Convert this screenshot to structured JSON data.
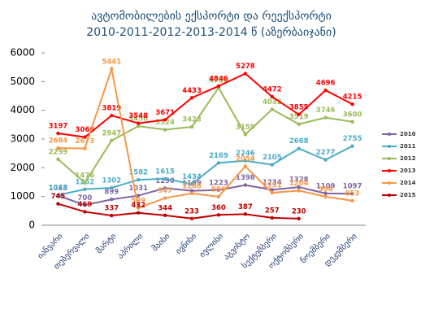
{
  "chart_data": {
    "type": "line",
    "title": "ავტომობილების  ექსპორტი და რეექსპორტი",
    "subtitle": "2010-2011-2012-2013-2014  წ (აზერბაიჯანი)",
    "categories": [
      "იანვარი",
      "თებერვალი",
      "მარტი",
      "აპრილი",
      "მაისი",
      "ივნისი",
      "ივლისი",
      "აგვისტო",
      "სექტემბერი",
      "ოქტომბერი",
      "ნოემბერი",
      "დეკემბერი"
    ],
    "series": [
      {
        "name": "2010",
        "color": "#8064a2",
        "values": [
          1033,
          700,
          899,
          1031,
          1290,
          1199,
          1223,
          1398,
          1234,
          1328,
          1109,
          1097
        ]
      },
      {
        "name": "2011",
        "color": "#4bacc6",
        "values": [
          1048,
          1252,
          1302,
          1582,
          1615,
          1434,
          2169,
          2246,
          2105,
          2668,
          2277,
          2755
        ]
      },
      {
        "name": "2012",
        "color": "#9bbb59",
        "values": [
          2299,
          1476,
          2947,
          3450,
          3324,
          3423,
          4786,
          3159,
          4032,
          3519,
          3746,
          3600
        ]
      },
      {
        "name": "2013",
        "color": "#ff0000",
        "values": [
          3197,
          3066,
          3819,
          3548,
          3671,
          4433,
          4846,
          5278,
          4472,
          3855,
          4696,
          4215
        ]
      },
      {
        "name": "2014",
        "color": "#f79646",
        "values": [
          2684,
          2673,
          5441,
          599,
          947,
          1108,
          996,
          2054,
          1131,
          1204,
          994,
          853
        ]
      },
      {
        "name": "2015",
        "color": "#c00000",
        "values": [
          745,
          469,
          337,
          432,
          344,
          233,
          360,
          387,
          257,
          230,
          null,
          null
        ]
      }
    ],
    "ylim": [
      0,
      6000
    ],
    "yticks": [
      0,
      1000,
      2000,
      3000,
      4000,
      5000,
      6000
    ],
    "grid": false,
    "legend": "right"
  }
}
